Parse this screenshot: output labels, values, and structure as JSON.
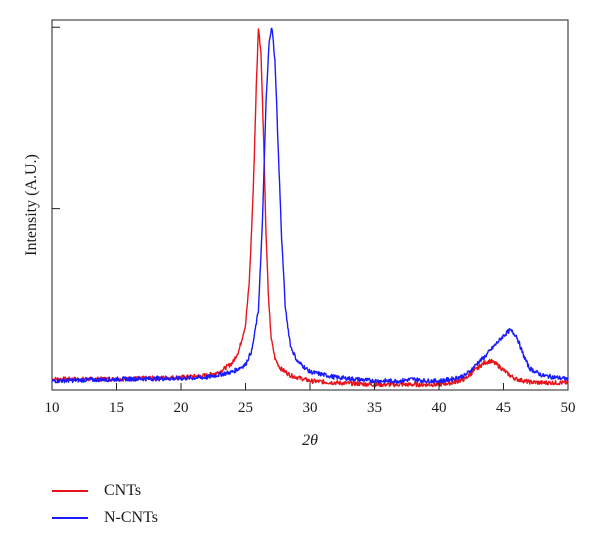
{
  "chart_data": {
    "type": "line",
    "title": "",
    "xlabel": "2θ",
    "ylabel": "Intensity (A.U.)",
    "xlim": [
      10,
      50
    ],
    "ylim": [
      0,
      1.02
    ],
    "xticks": [
      10,
      15,
      20,
      25,
      30,
      35,
      40,
      45,
      50
    ],
    "yticks_labeled": false,
    "grid": false,
    "legend_position": "below",
    "series": [
      {
        "name": "CNTs",
        "color": "#e8141c",
        "x": [
          10,
          15,
          20,
          22,
          23,
          24,
          24.5,
          25,
          25.3,
          25.6,
          25.85,
          26.0,
          26.2,
          26.4,
          26.6,
          26.8,
          27.0,
          27.3,
          27.7,
          28.5,
          30,
          32,
          35,
          38,
          40,
          41,
          42,
          42.8,
          43.5,
          44.0,
          44.5,
          45,
          45.5,
          46,
          47,
          48,
          50
        ],
        "values": [
          0.03,
          0.03,
          0.035,
          0.04,
          0.05,
          0.075,
          0.11,
          0.18,
          0.3,
          0.55,
          0.85,
          1.0,
          0.93,
          0.7,
          0.42,
          0.24,
          0.14,
          0.085,
          0.06,
          0.04,
          0.025,
          0.02,
          0.015,
          0.015,
          0.015,
          0.02,
          0.03,
          0.055,
          0.075,
          0.08,
          0.07,
          0.055,
          0.04,
          0.03,
          0.022,
          0.02,
          0.02
        ]
      },
      {
        "name": "N-CNTs",
        "color": "#1a1aff",
        "x": [
          10,
          15,
          20,
          22,
          24,
          25,
          25.5,
          26,
          26.3,
          26.6,
          26.85,
          27.05,
          27.3,
          27.5,
          27.8,
          28.1,
          28.5,
          29,
          30,
          32,
          35,
          37,
          38,
          39,
          40,
          41,
          42,
          42.5,
          43,
          43.5,
          44,
          44.5,
          45,
          45.5,
          46,
          46.5,
          47,
          48,
          50
        ],
        "values": [
          0.025,
          0.03,
          0.032,
          0.035,
          0.05,
          0.07,
          0.11,
          0.22,
          0.45,
          0.8,
          0.97,
          1.0,
          0.9,
          0.7,
          0.42,
          0.22,
          0.12,
          0.08,
          0.05,
          0.035,
          0.025,
          0.025,
          0.03,
          0.025,
          0.025,
          0.03,
          0.04,
          0.055,
          0.075,
          0.09,
          0.11,
          0.13,
          0.15,
          0.165,
          0.15,
          0.1,
          0.06,
          0.04,
          0.03
        ]
      }
    ]
  }
}
